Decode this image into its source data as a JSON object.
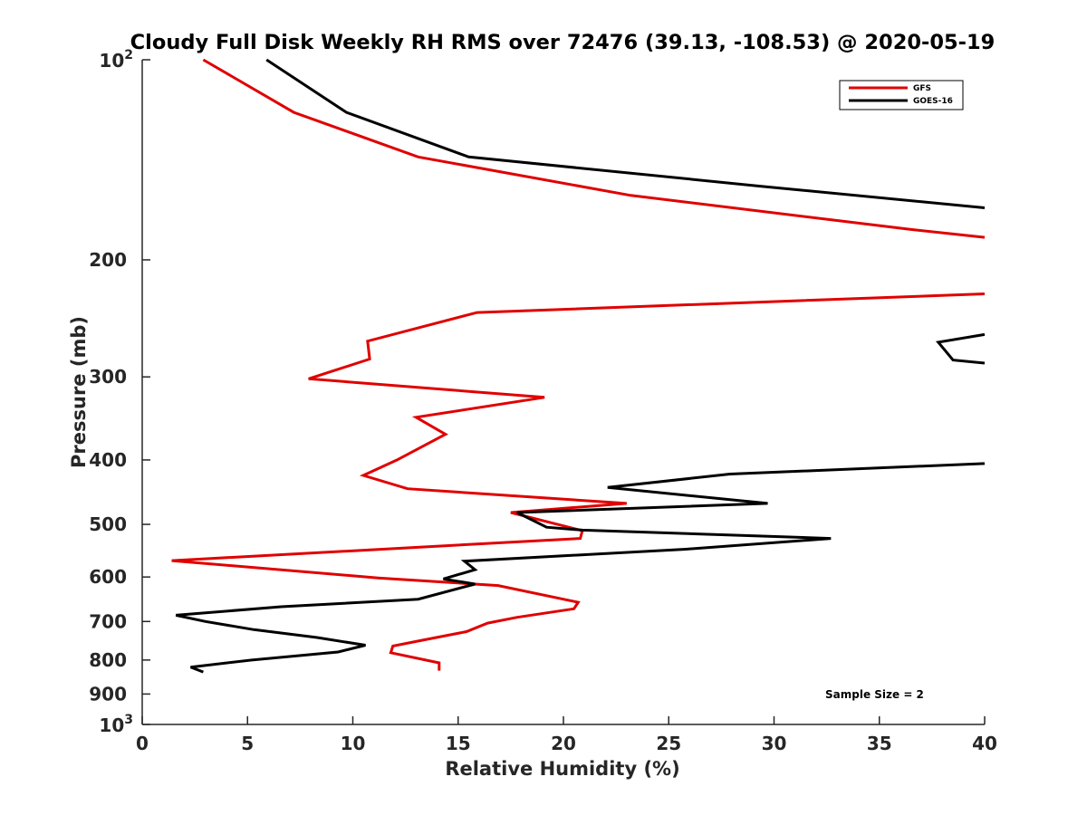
{
  "chart_data": {
    "type": "line",
    "title": "Cloudy Full Disk Weekly RH RMS over 72476 (39.13, -108.53) @ 2020-05-19",
    "xlabel": "Relative Humidity (%)",
    "ylabel": "Pressure (mb)",
    "xlim": [
      0,
      40
    ],
    "ylim": [
      100,
      1000
    ],
    "y_scale": "log",
    "y_reversed": true,
    "grid": false,
    "legend_position": "top-right",
    "xticks": [
      0,
      5,
      10,
      15,
      20,
      25,
      30,
      35,
      40
    ],
    "xtick_labels": [
      "0",
      "5",
      "10",
      "15",
      "20",
      "25",
      "30",
      "35",
      "40"
    ],
    "yticks": [
      {
        "value": 100,
        "base": "10",
        "exp": "2"
      },
      {
        "value": 200,
        "label": "200"
      },
      {
        "value": 300,
        "label": "300"
      },
      {
        "value": 400,
        "label": "400"
      },
      {
        "value": 500,
        "label": "500"
      },
      {
        "value": 600,
        "label": "600"
      },
      {
        "value": 700,
        "label": "700"
      },
      {
        "value": 800,
        "label": "800"
      },
      {
        "value": 900,
        "label": "900"
      },
      {
        "value": 1000,
        "base": "10",
        "exp": "3"
      }
    ],
    "annotation": "Sample Size = 2",
    "series": [
      {
        "name": "GFS",
        "color": "#e00000",
        "segments": [
          [
            {
              "x": 2.9,
              "y": 100
            },
            {
              "x": 7.2,
              "y": 120
            },
            {
              "x": 13.1,
              "y": 140
            },
            {
              "x": 23.2,
              "y": 160
            },
            {
              "x": 36.5,
              "y": 180
            },
            {
              "x": 40.0,
              "y": 185
            }
          ],
          [
            {
              "x": 40.0,
              "y": 225
            },
            {
              "x": 15.9,
              "y": 240
            },
            {
              "x": 10.7,
              "y": 265
            },
            {
              "x": 10.8,
              "y": 282
            },
            {
              "x": 7.9,
              "y": 302
            },
            {
              "x": 19.1,
              "y": 322
            },
            {
              "x": 13.0,
              "y": 345
            },
            {
              "x": 14.4,
              "y": 366
            },
            {
              "x": 12.1,
              "y": 400
            },
            {
              "x": 10.5,
              "y": 422
            },
            {
              "x": 12.6,
              "y": 442
            },
            {
              "x": 23.0,
              "y": 465
            },
            {
              "x": 17.5,
              "y": 480
            },
            {
              "x": 20.9,
              "y": 511
            },
            {
              "x": 20.8,
              "y": 525
            },
            {
              "x": 1.4,
              "y": 567
            },
            {
              "x": 11.2,
              "y": 602
            },
            {
              "x": 16.9,
              "y": 618
            },
            {
              "x": 20.7,
              "y": 655
            },
            {
              "x": 20.5,
              "y": 670
            },
            {
              "x": 17.8,
              "y": 690
            },
            {
              "x": 16.4,
              "y": 704
            },
            {
              "x": 15.4,
              "y": 725
            },
            {
              "x": 13.3,
              "y": 747
            },
            {
              "x": 11.9,
              "y": 762
            },
            {
              "x": 11.8,
              "y": 780
            },
            {
              "x": 14.1,
              "y": 808
            },
            {
              "x": 14.1,
              "y": 830
            }
          ]
        ]
      },
      {
        "name": "GOES-16",
        "color": "#000000",
        "segments": [
          [
            {
              "x": 5.9,
              "y": 100
            },
            {
              "x": 9.7,
              "y": 120
            },
            {
              "x": 15.5,
              "y": 140
            },
            {
              "x": 29.4,
              "y": 155
            },
            {
              "x": 40.0,
              "y": 167
            }
          ],
          [
            {
              "x": 40.0,
              "y": 259
            },
            {
              "x": 37.8,
              "y": 266
            },
            {
              "x": 38.5,
              "y": 283
            },
            {
              "x": 40.0,
              "y": 286
            }
          ],
          [
            {
              "x": 40.0,
              "y": 405
            },
            {
              "x": 27.9,
              "y": 420
            },
            {
              "x": 22.1,
              "y": 440
            },
            {
              "x": 29.7,
              "y": 465
            },
            {
              "x": 17.8,
              "y": 480
            },
            {
              "x": 19.2,
              "y": 505
            },
            {
              "x": 20.9,
              "y": 510
            },
            {
              "x": 32.7,
              "y": 525
            },
            {
              "x": 25.8,
              "y": 545
            },
            {
              "x": 15.3,
              "y": 568
            },
            {
              "x": 15.8,
              "y": 585
            },
            {
              "x": 14.3,
              "y": 604
            },
            {
              "x": 15.8,
              "y": 615
            },
            {
              "x": 13.1,
              "y": 648
            },
            {
              "x": 6.6,
              "y": 665
            },
            {
              "x": 1.6,
              "y": 685
            },
            {
              "x": 3.0,
              "y": 700
            },
            {
              "x": 5.3,
              "y": 720
            },
            {
              "x": 8.3,
              "y": 740
            },
            {
              "x": 10.6,
              "y": 760
            },
            {
              "x": 9.3,
              "y": 778
            },
            {
              "x": 5.2,
              "y": 800
            },
            {
              "x": 2.3,
              "y": 820
            },
            {
              "x": 2.9,
              "y": 834
            }
          ]
        ]
      }
    ]
  }
}
